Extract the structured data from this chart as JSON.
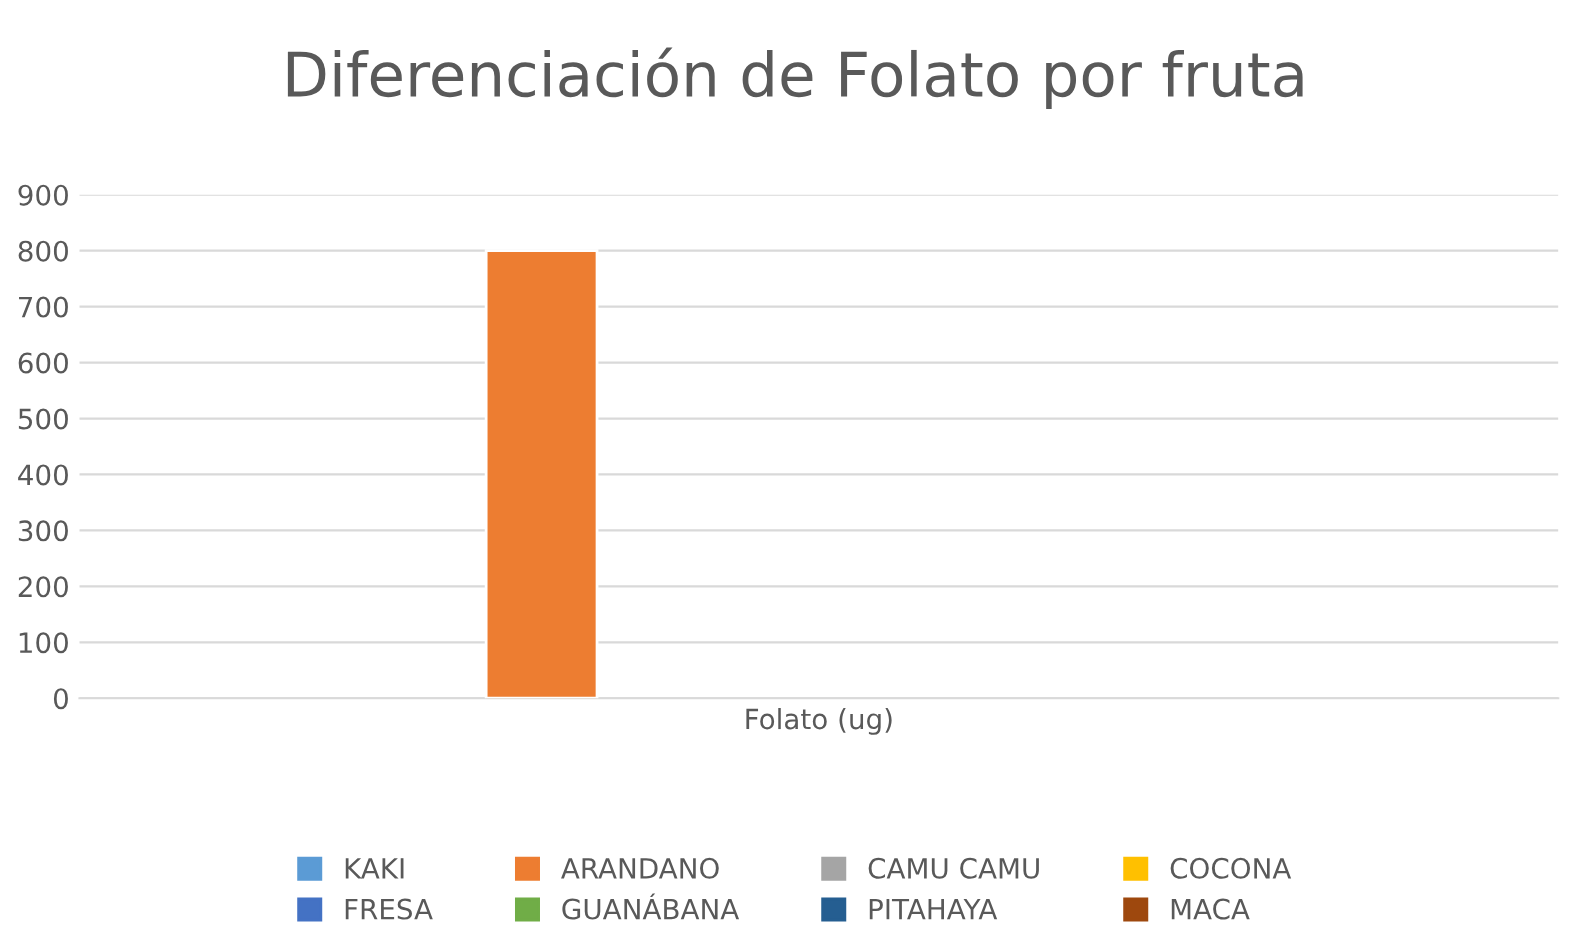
{
  "chart_data": {
    "type": "bar",
    "title": "Diferenciación de Folato por fruta",
    "categories": [
      "Folato (ug)"
    ],
    "series": [
      {
        "name": "KAKI",
        "color": "#5b9bd5",
        "values": [
          null
        ]
      },
      {
        "name": "ARANDANO",
        "color": "#ed7d31",
        "values": [
          800
        ]
      },
      {
        "name": "CAMU CAMU",
        "color": "#a5a5a5",
        "values": [
          null
        ]
      },
      {
        "name": "COCONA",
        "color": "#ffc000",
        "values": [
          null
        ]
      },
      {
        "name": "FRESA",
        "color": "#4472c4",
        "values": [
          null
        ]
      },
      {
        "name": "GUANÁBANA",
        "color": "#70ad47",
        "values": [
          null
        ]
      },
      {
        "name": "PITAHAYA",
        "color": "#255e91",
        "values": [
          null
        ]
      },
      {
        "name": "MACA",
        "color": "#9e480e",
        "values": [
          null
        ]
      }
    ],
    "ylim": [
      0,
      900
    ],
    "yticks": [
      0,
      100,
      200,
      300,
      400,
      500,
      600,
      700,
      800,
      900
    ],
    "grid": "y",
    "legend": "bottom"
  }
}
